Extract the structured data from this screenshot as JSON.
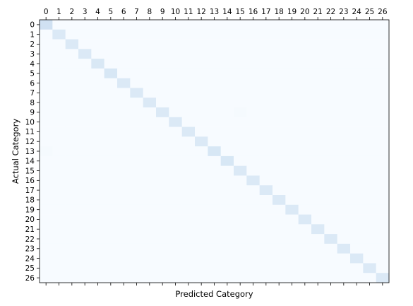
{
  "chart_data": {
    "type": "heatmap",
    "title": "",
    "xlabel": "Predicted Category",
    "ylabel": "Actual Category",
    "x_categories": [
      "0",
      "1",
      "2",
      "3",
      "4",
      "5",
      "6",
      "7",
      "8",
      "9",
      "10",
      "11",
      "12",
      "13",
      "14",
      "15",
      "16",
      "17",
      "18",
      "19",
      "20",
      "21",
      "22",
      "23",
      "24",
      "25",
      "26"
    ],
    "y_categories": [
      "0",
      "1",
      "2",
      "3",
      "4",
      "5",
      "6",
      "7",
      "8",
      "9",
      "10",
      "11",
      "12",
      "13",
      "14",
      "15",
      "16",
      "17",
      "18",
      "19",
      "20",
      "21",
      "22",
      "23",
      "24",
      "25",
      "26"
    ],
    "x_tick_position": "top",
    "colormap": "Blues",
    "colorscale": {
      "low": "#f7fbff",
      "high": "#08306b"
    },
    "colorbar": false,
    "grid": false,
    "value_range": [
      0,
      1
    ],
    "background_value": 0.0,
    "diagonal": [
      {
        "row": 0,
        "col": 0,
        "value": 0.2
      },
      {
        "row": 1,
        "col": 1,
        "value": 0.14
      },
      {
        "row": 2,
        "col": 2,
        "value": 0.14
      },
      {
        "row": 3,
        "col": 3,
        "value": 0.14
      },
      {
        "row": 4,
        "col": 4,
        "value": 0.15
      },
      {
        "row": 5,
        "col": 5,
        "value": 0.16
      },
      {
        "row": 6,
        "col": 6,
        "value": 0.14
      },
      {
        "row": 7,
        "col": 7,
        "value": 0.14
      },
      {
        "row": 8,
        "col": 8,
        "value": 0.14
      },
      {
        "row": 9,
        "col": 9,
        "value": 0.14
      },
      {
        "row": 10,
        "col": 10,
        "value": 0.14
      },
      {
        "row": 11,
        "col": 11,
        "value": 0.14
      },
      {
        "row": 12,
        "col": 12,
        "value": 0.14
      },
      {
        "row": 13,
        "col": 13,
        "value": 0.16
      },
      {
        "row": 14,
        "col": 14,
        "value": 0.16
      },
      {
        "row": 15,
        "col": 15,
        "value": 0.14
      },
      {
        "row": 16,
        "col": 16,
        "value": 0.14
      },
      {
        "row": 17,
        "col": 17,
        "value": 0.14
      },
      {
        "row": 18,
        "col": 18,
        "value": 0.14
      },
      {
        "row": 19,
        "col": 19,
        "value": 0.14
      },
      {
        "row": 20,
        "col": 20,
        "value": 0.14
      },
      {
        "row": 21,
        "col": 21,
        "value": 0.14
      },
      {
        "row": 22,
        "col": 22,
        "value": 0.14
      },
      {
        "row": 23,
        "col": 23,
        "value": 0.14
      },
      {
        "row": 24,
        "col": 24,
        "value": 0.14
      },
      {
        "row": 25,
        "col": 25,
        "value": 0.14
      },
      {
        "row": 26,
        "col": 26,
        "value": 0.14
      }
    ],
    "off_diagonal": [
      {
        "row": 9,
        "col": 15,
        "value": 0.01
      },
      {
        "row": 13,
        "col": 0,
        "value": 0.01
      }
    ]
  }
}
